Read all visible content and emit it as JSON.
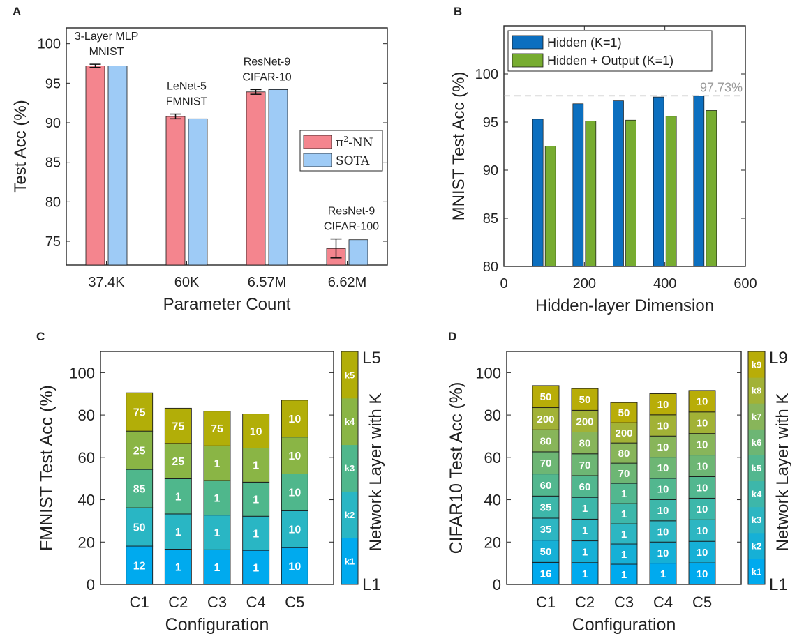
{
  "chart_data": [
    {
      "panel": "A",
      "type": "bar",
      "categories": [
        "37.4K",
        "60K",
        "6.57M",
        "6.62M"
      ],
      "xlabel": "Parameter Count",
      "ylabel": "Test Acc (%)",
      "ylim": [
        72,
        102
      ],
      "yticks": [
        75,
        80,
        85,
        90,
        95,
        100
      ],
      "series": [
        {
          "name": "π²-NN",
          "legend_main": "π",
          "legend_sup": "2",
          "legend_rest": "-NN",
          "color": "#f4858e",
          "values": [
            97.2,
            90.8,
            93.9,
            74.1
          ],
          "errors": [
            0.2,
            0.3,
            0.3,
            1.2
          ]
        },
        {
          "name": "SOTA",
          "color": "#9ecbf6",
          "values": [
            97.2,
            90.5,
            94.2,
            75.2
          ]
        }
      ],
      "annotations": [
        {
          "lines": [
            "3-Layer MLP",
            "MNIST"
          ]
        },
        {
          "lines": [
            "LeNet-5",
            "FMNIST"
          ]
        },
        {
          "lines": [
            "ResNet-9",
            "CIFAR-10"
          ]
        },
        {
          "lines": [
            "ResNet-9",
            "CIFAR-100"
          ]
        }
      ],
      "legend_position": "center-right"
    },
    {
      "panel": "B",
      "type": "bar",
      "xlabel": "Hidden-layer Dimension",
      "ylabel": "MNIST Test Acc (%)",
      "xlim": [
        0,
        600
      ],
      "ylim": [
        80,
        105
      ],
      "xticks": [
        0,
        200,
        400,
        600
      ],
      "yticks": [
        80,
        85,
        90,
        95,
        100
      ],
      "x": [
        100,
        200,
        300,
        400,
        500
      ],
      "series": [
        {
          "name": "Hidden (K=1)",
          "color": "#0c6fbf",
          "values": [
            95.3,
            96.9,
            97.2,
            97.6,
            97.7
          ]
        },
        {
          "name": "Hidden + Output (K=1)",
          "color": "#77ac30",
          "values": [
            92.5,
            95.1,
            95.2,
            95.6,
            96.2
          ]
        }
      ],
      "reference_line": {
        "value": 97.73,
        "label": "97.73%"
      },
      "legend_position": "top-left"
    },
    {
      "panel": "C",
      "type": "stacked-bar",
      "categories": [
        "C1",
        "C2",
        "C3",
        "C4",
        "C5"
      ],
      "xlabel": "Configuration",
      "ylabel": "FMNIST Test Acc (%)",
      "ylim": [
        0,
        110
      ],
      "yticks": [
        0,
        20,
        40,
        60,
        80,
        100
      ],
      "totals": [
        90.5,
        83.2,
        81.8,
        80.5,
        87.0
      ],
      "segment_labels": [
        [
          "12",
          "50",
          "85",
          "25",
          "75"
        ],
        [
          "1",
          "1",
          "1",
          "25",
          "75"
        ],
        [
          "1",
          "1",
          "1",
          "1",
          "75"
        ],
        [
          "1",
          "1",
          "1",
          "1",
          "10"
        ],
        [
          "10",
          "10",
          "10",
          "10",
          "10"
        ]
      ],
      "layer_colors": [
        "#00aaee",
        "#29b6c4",
        "#4fb78c",
        "#8ab545",
        "#b2ae08"
      ],
      "colorbar": {
        "labels": [
          "k1",
          "k2",
          "k3",
          "k4",
          "k5"
        ],
        "top": "L5",
        "bottom": "L1",
        "title": "Network Layer with K"
      }
    },
    {
      "panel": "D",
      "type": "stacked-bar",
      "categories": [
        "C1",
        "C2",
        "C3",
        "C4",
        "C5"
      ],
      "xlabel": "Configuration",
      "ylabel": "CIFAR10 Test Acc (%)",
      "ylim": [
        0,
        110
      ],
      "yticks": [
        0,
        20,
        40,
        60,
        80,
        100
      ],
      "totals": [
        93.9,
        92.5,
        85.9,
        90.1,
        91.6
      ],
      "segment_labels": [
        [
          "16",
          "50",
          "35",
          "35",
          "60",
          "70",
          "80",
          "200",
          "50"
        ],
        [
          "1",
          "1",
          "1",
          "1",
          "60",
          "70",
          "80",
          "200",
          "50"
        ],
        [
          "1",
          "1",
          "1",
          "1",
          "1",
          "70",
          "80",
          "200",
          "50"
        ],
        [
          "1",
          "10",
          "10",
          "10",
          "10",
          "10",
          "10",
          "10",
          "10"
        ],
        [
          "10",
          "10",
          "10",
          "10",
          "10",
          "10",
          "10",
          "10",
          "10"
        ]
      ],
      "layer_colors": [
        "#00aaee",
        "#16b0d6",
        "#2db6c2",
        "#3db7aa",
        "#52b78f",
        "#6db674",
        "#88b55a",
        "#a2b236",
        "#b8ad08"
      ],
      "colorbar": {
        "labels": [
          "k1",
          "k2",
          "k3",
          "k4",
          "k5",
          "k6",
          "k7",
          "k8",
          "k9"
        ],
        "top": "L9",
        "bottom": "L1",
        "title": "Network Layer with K"
      }
    }
  ]
}
